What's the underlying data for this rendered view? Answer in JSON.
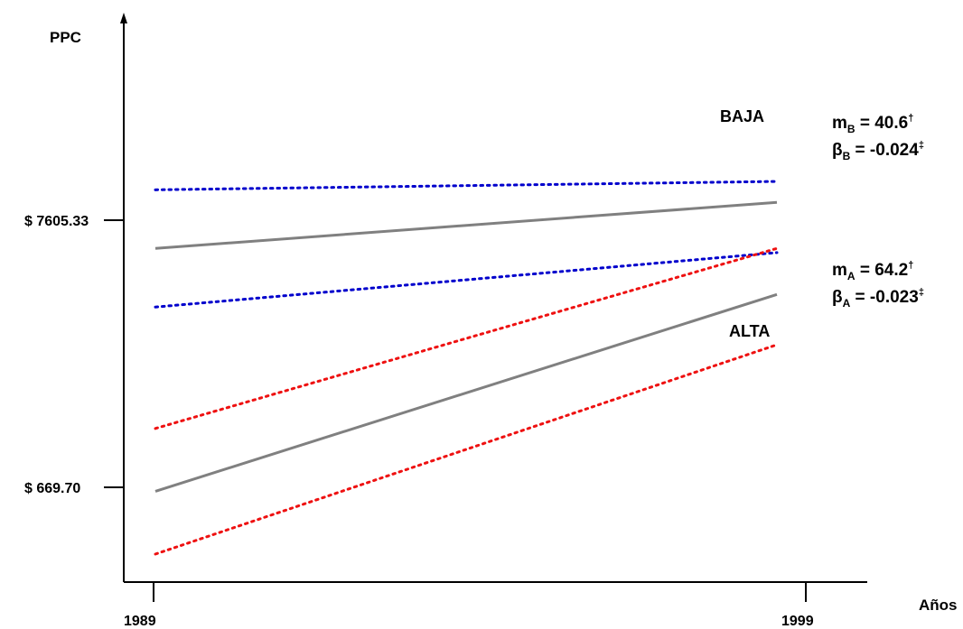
{
  "chart_data": {
    "type": "line",
    "title": "",
    "ylabel": "PPC",
    "xlabel": "Años",
    "x": [
      1989,
      1999
    ],
    "x_tick_labels": [
      "1989",
      "1999"
    ],
    "y_tick_labels": [
      "$ 7605.33",
      "$ 669.70"
    ],
    "grid": false,
    "legend": "none",
    "series": [
      {
        "name": "BAJA",
        "style": "solid",
        "color": "#808080",
        "start": 0.73,
        "end": 0.84
      },
      {
        "style": "dotted",
        "color": "#0000cc",
        "start": 0.87,
        "end": 0.89
      },
      {
        "style": "dotted",
        "color": "#0000cc",
        "start": 0.59,
        "end": 0.72
      },
      {
        "name": "ALTA",
        "style": "solid",
        "color": "#808080",
        "start": 0.15,
        "end": 0.62
      },
      {
        "style": "dotted",
        "color": "#ee1111",
        "start": 0.3,
        "end": 0.73
      },
      {
        "style": "dotted",
        "color": "#ee1111",
        "start": 0.0,
        "end": 0.5
      }
    ],
    "annotations": {
      "baja": {
        "m": {
          "sym": "m",
          "sub": "B",
          "value": " = 40.6",
          "mark": "†"
        },
        "beta": {
          "sym": "β",
          "sub": "B",
          "value": " = -0.024",
          "mark": "‡"
        }
      },
      "alta": {
        "m": {
          "sym": "m",
          "sub": "A",
          "value": " = 64.2",
          "mark": "†"
        },
        "beta": {
          "sym": "β",
          "sub": "A",
          "value": " = -0.023",
          "mark": "‡"
        }
      }
    },
    "y_scale_note": "relative position 0..1 between plot bottom and top; ticks unlabelled except two PPC values"
  }
}
